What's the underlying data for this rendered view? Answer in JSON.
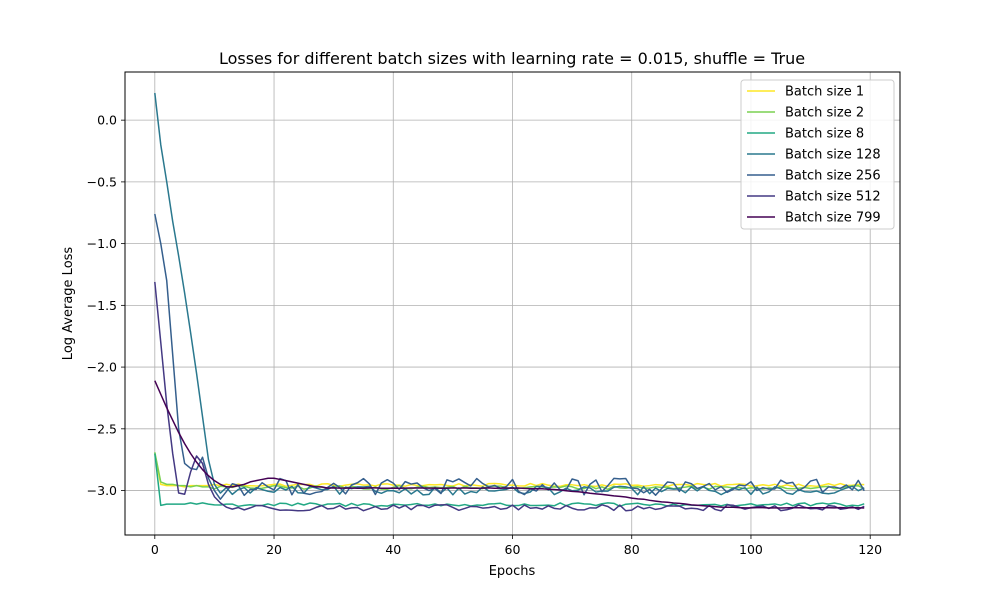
{
  "chart_data": {
    "type": "line",
    "title": "Losses for different batch sizes with learning rate = 0.015, shuffle = True",
    "xlabel": "Epochs",
    "ylabel": "Log Average Loss",
    "xlim": [
      -5,
      125
    ],
    "ylim": [
      -3.36,
      0.39
    ],
    "xticks": [
      0,
      20,
      40,
      60,
      80,
      100,
      120
    ],
    "yticks": [
      0.0,
      -0.5,
      -1.0,
      -1.5,
      -2.0,
      -2.5,
      -3.0
    ],
    "ytick_labels": [
      "0.0",
      "−0.5",
      "−1.0",
      "−1.5",
      "−2.0",
      "−2.5",
      "−3.0"
    ],
    "grid": true,
    "legend_position": "top-right",
    "epochs": 120,
    "series": [
      {
        "name": "Batch size 1",
        "color": "#fde725",
        "start": [
          -2.7,
          -2.95,
          -2.96,
          -2.96,
          -2.96,
          -2.97,
          -2.96,
          -2.96,
          -2.96,
          -2.96
        ],
        "level": -2.955,
        "noise": 0.012
      },
      {
        "name": "Batch size 2",
        "color": "#7ad151",
        "start": [
          -2.69,
          -2.93,
          -2.95,
          -2.95,
          -2.96,
          -2.96,
          -2.97,
          -2.96,
          -2.97,
          -2.97
        ],
        "level": -2.975,
        "noise": 0.015
      },
      {
        "name": "Batch size 8",
        "color": "#22a884",
        "start": [
          -2.7,
          -3.12,
          -3.11,
          -3.11,
          -3.11,
          -3.11,
          -3.1,
          -3.11,
          -3.1,
          -3.11
        ],
        "level": -3.115,
        "noise": 0.015
      },
      {
        "name": "Batch size 128",
        "color": "#2a788e",
        "start": [
          0.22,
          -0.2,
          -0.5,
          -0.82,
          -1.1,
          -1.4,
          -1.72,
          -2.05,
          -2.4,
          -2.75,
          -2.95,
          -3.02
        ],
        "level": -3.0,
        "noise": 0.035
      },
      {
        "name": "Batch size 256",
        "color": "#355f8d",
        "start": [
          -0.76,
          -1.0,
          -1.3,
          -1.9,
          -2.5,
          -2.78,
          -2.82,
          -2.83,
          -2.73,
          -2.9,
          -3.0,
          -3.07
        ],
        "level": -2.97,
        "noise": 0.07
      },
      {
        "name": "Batch size 512",
        "color": "#443983",
        "start": [
          -1.31,
          -1.8,
          -2.3,
          -2.7,
          -3.02,
          -3.03,
          -2.85,
          -2.72,
          -2.78,
          -2.95,
          -3.05,
          -3.1
        ],
        "level": -3.14,
        "noise": 0.025
      },
      {
        "name": "Batch size 799",
        "color": "#440154",
        "start": [
          -2.11,
          -2.22,
          -2.33,
          -2.43,
          -2.53,
          -2.62,
          -2.7,
          -2.77,
          -2.83,
          -2.88,
          -2.92,
          -2.95,
          -2.97,
          -2.97,
          -2.96,
          -2.95,
          -2.93,
          -2.92,
          -2.91,
          -2.9,
          -2.9,
          -2.91,
          -2.92,
          -2.93,
          -2.94,
          -2.95,
          -2.96,
          -2.97,
          -2.97,
          -2.98
        ],
        "level": -2.98,
        "noise": 0.0
      }
    ]
  }
}
